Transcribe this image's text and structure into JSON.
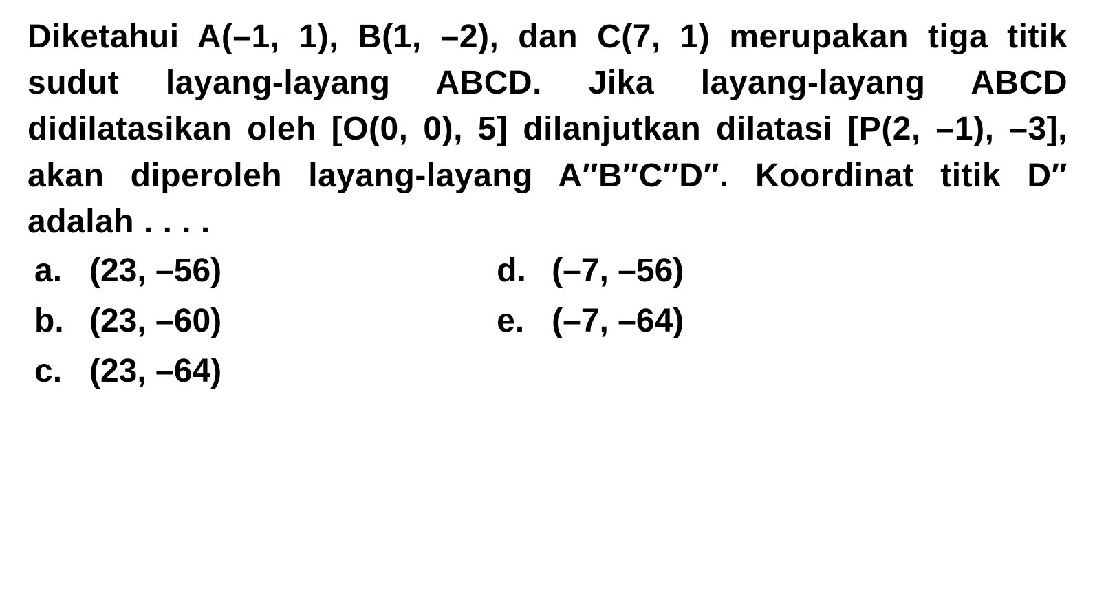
{
  "question": {
    "text": "Diketahui A(–1, 1), B(1, –2), dan C(7, 1) merupakan tiga titik sudut layang-layang ABCD. Jika layang-layang ABCD didilatasikan oleh [O(0, 0), 5] dilanjutkan dilatasi [P(2, –1), –3], akan diperoleh layang-layang A″B″C″D″. Koordinat titik D″ adalah . . . ."
  },
  "options": {
    "left": [
      {
        "letter": "a.",
        "value": "(23, –56)"
      },
      {
        "letter": "b.",
        "value": "(23, –60)"
      },
      {
        "letter": "c.",
        "value": "(23, –64)"
      }
    ],
    "right": [
      {
        "letter": "d.",
        "value": "(–7, –56)"
      },
      {
        "letter": "e.",
        "value": "(–7, –64)"
      }
    ]
  },
  "styling": {
    "font_size": 48,
    "font_weight": "bold",
    "text_color": "#000000",
    "background_color": "#ffffff",
    "line_height": 1.4,
    "font_family": "Arial, Helvetica, sans-serif"
  }
}
